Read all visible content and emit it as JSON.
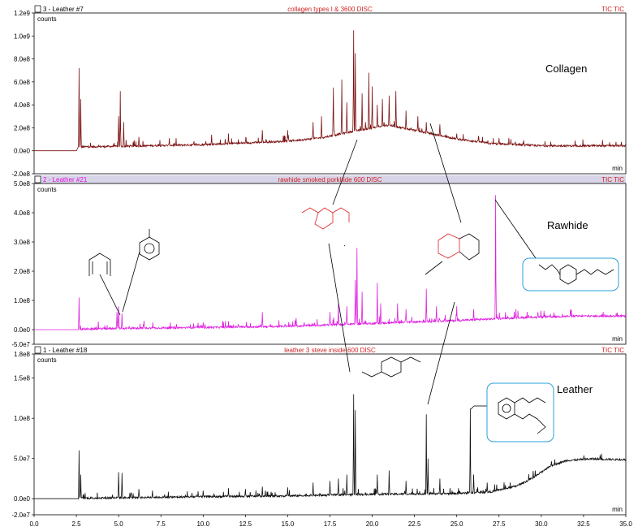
{
  "chart_data": {
    "type": "line",
    "x_label": "min",
    "x_ticks": [
      "0.0",
      "2.5",
      "5.0",
      "7.5",
      "10.0",
      "12.5",
      "15.0",
      "17.5",
      "20.0",
      "22.5",
      "25.0",
      "27.5",
      "30.0",
      "32.5",
      "35.0"
    ],
    "xlim": [
      0,
      35
    ],
    "panels": [
      {
        "header_left": "3 - Leather #7",
        "header_center": "collagen types I & 3600 DISC",
        "header_right": "TIC TIC",
        "y_unit": "counts",
        "x_unit": "min",
        "annotation": "Collagen",
        "header_color": "#000000",
        "line_color": "#7b1010",
        "ylim": [
          -200000000,
          1200000000
        ],
        "y_ticks": [
          "-2.0e8",
          "0.0e0",
          "2.0e8",
          "4.0e8",
          "6.0e8",
          "8.0e8",
          "1.0e9",
          "1.2e9"
        ],
        "baseline": [
          [
            0,
            0
          ],
          [
            2.5,
            0
          ],
          [
            2.6,
            30000000
          ],
          [
            5,
            35000000
          ],
          [
            10,
            50000000
          ],
          [
            15,
            80000000
          ],
          [
            17,
            110000000
          ],
          [
            19,
            170000000
          ],
          [
            21,
            220000000
          ],
          [
            23,
            160000000
          ],
          [
            25,
            100000000
          ],
          [
            27,
            60000000
          ],
          [
            30,
            40000000
          ],
          [
            35,
            40000000
          ]
        ],
        "peaks": [
          [
            2.65,
            720000000
          ],
          [
            2.75,
            450000000
          ],
          [
            5.0,
            300000000
          ],
          [
            5.1,
            520000000
          ],
          [
            5.3,
            250000000
          ],
          [
            6.2,
            120000000
          ],
          [
            8.0,
            110000000
          ],
          [
            10.5,
            140000000
          ],
          [
            11.5,
            150000000
          ],
          [
            13.5,
            180000000
          ],
          [
            15.0,
            180000000
          ],
          [
            16.5,
            250000000
          ],
          [
            17.0,
            300000000
          ],
          [
            17.7,
            550000000
          ],
          [
            18.2,
            620000000
          ],
          [
            18.5,
            420000000
          ],
          [
            18.9,
            1050000000
          ],
          [
            19.0,
            850000000
          ],
          [
            19.4,
            500000000
          ],
          [
            19.8,
            680000000
          ],
          [
            20.0,
            560000000
          ],
          [
            20.3,
            400000000
          ],
          [
            20.6,
            450000000
          ],
          [
            21.0,
            480000000
          ],
          [
            21.4,
            520000000
          ],
          [
            22.0,
            350000000
          ],
          [
            22.7,
            300000000
          ],
          [
            23.2,
            250000000
          ],
          [
            24.0,
            230000000
          ],
          [
            25.0,
            150000000
          ],
          [
            26.3,
            120000000
          ],
          [
            27.5,
            110000000
          ]
        ]
      },
      {
        "header_left": "2 - Leather #21",
        "header_center": "rawhide smoked porkhide 600 DISC",
        "header_right": "TIC TIC",
        "y_unit": "counts",
        "x_unit": "min",
        "annotation": "Rawhide",
        "header_color": "#e010e0",
        "line_color": "#e020e0",
        "ylim": [
          -50000000,
          500000000
        ],
        "y_ticks": [
          "-5.0e7",
          "0.0e0",
          "1.0e8",
          "2.0e8",
          "3.0e8",
          "4.0e8",
          "5.0e8"
        ],
        "baseline": [
          [
            0,
            0
          ],
          [
            2.5,
            0
          ],
          [
            5,
            3000000
          ],
          [
            10,
            6000000
          ],
          [
            15,
            10000000
          ],
          [
            20,
            20000000
          ],
          [
            25,
            30000000
          ],
          [
            29,
            40000000
          ],
          [
            32,
            45000000
          ],
          [
            35,
            45000000
          ]
        ],
        "peaks": [
          [
            2.65,
            110000000
          ],
          [
            4.9,
            60000000
          ],
          [
            5.0,
            80000000
          ],
          [
            5.2,
            55000000
          ],
          [
            6.5,
            30000000
          ],
          [
            10.0,
            25000000
          ],
          [
            13.5,
            60000000
          ],
          [
            15.5,
            40000000
          ],
          [
            17.5,
            60000000
          ],
          [
            18.0,
            90000000
          ],
          [
            18.5,
            80000000
          ],
          [
            19.0,
            170000000
          ],
          [
            19.1,
            280000000
          ],
          [
            19.4,
            130000000
          ],
          [
            20.3,
            160000000
          ],
          [
            20.5,
            90000000
          ],
          [
            21.5,
            90000000
          ],
          [
            22.0,
            70000000
          ],
          [
            23.2,
            140000000
          ],
          [
            23.8,
            80000000
          ],
          [
            25.0,
            80000000
          ],
          [
            26.0,
            70000000
          ],
          [
            27.3,
            460000000
          ],
          [
            28.5,
            70000000
          ],
          [
            29.8,
            60000000
          ]
        ]
      },
      {
        "header_left": "1 - Leather #18",
        "header_center": "leather 3 steve inside 600 DISC",
        "header_right": "TIC TIC",
        "y_unit": "counts",
        "x_unit": "min",
        "annotation": "Leather",
        "header_color": "#000000",
        "line_color": "#111111",
        "ylim": [
          -20000000,
          180000000
        ],
        "y_ticks": [
          "-2.0e7",
          "0.0e0",
          "5.0e7",
          "1.0e8",
          "1.5e8",
          "1.8e8"
        ],
        "baseline": [
          [
            0,
            0
          ],
          [
            2.5,
            0
          ],
          [
            10,
            2000000
          ],
          [
            15,
            3000000
          ],
          [
            20,
            5000000
          ],
          [
            25,
            6000000
          ],
          [
            27,
            8000000
          ],
          [
            28.5,
            15000000
          ],
          [
            29.5,
            25000000
          ],
          [
            30.5,
            40000000
          ],
          [
            31.5,
            47000000
          ],
          [
            33,
            49000000
          ],
          [
            35,
            48000000
          ]
        ],
        "peaks": [
          [
            2.65,
            60000000
          ],
          [
            2.75,
            30000000
          ],
          [
            5.0,
            33000000
          ],
          [
            5.2,
            32000000
          ],
          [
            6.2,
            12000000
          ],
          [
            7.0,
            10000000
          ],
          [
            10.0,
            10000000
          ],
          [
            11.5,
            13000000
          ],
          [
            12.5,
            12000000
          ],
          [
            13.5,
            15000000
          ],
          [
            15.0,
            14000000
          ],
          [
            16.5,
            20000000
          ],
          [
            17.5,
            22000000
          ],
          [
            18.0,
            25000000
          ],
          [
            18.5,
            30000000
          ],
          [
            18.9,
            130000000
          ],
          [
            19.0,
            110000000
          ],
          [
            20.3,
            30000000
          ],
          [
            21.0,
            35000000
          ],
          [
            22.0,
            22000000
          ],
          [
            23.2,
            105000000
          ],
          [
            23.3,
            50000000
          ],
          [
            24.0,
            25000000
          ],
          [
            25.8,
            112000000
          ],
          [
            26.0,
            30000000
          ],
          [
            26.8,
            20000000
          ]
        ]
      }
    ]
  }
}
